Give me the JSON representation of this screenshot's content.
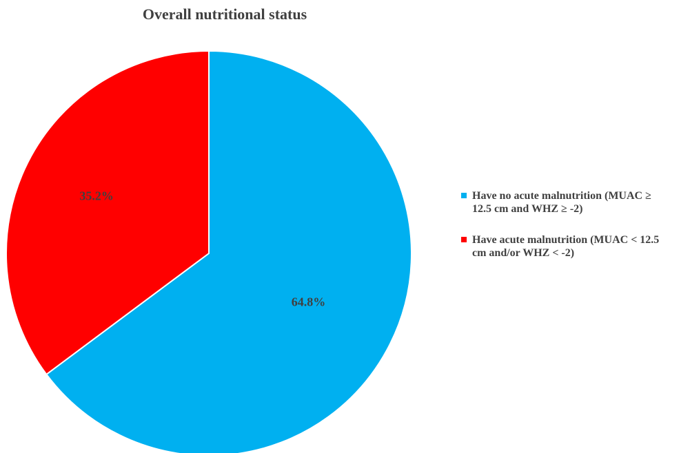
{
  "chart_data": {
    "type": "pie",
    "title": "Overall nutritional status",
    "categories": [
      "Have no acute malnutrition (MUAC ≥ 12.5 cm and WHZ ≥ -2)",
      "Have acute malnutrition (MUAC < 12.5 cm and/or WHZ < -2)"
    ],
    "values": [
      64.8,
      35.2
    ],
    "data_labels": [
      "64.8%",
      "35.2%"
    ],
    "colors": [
      "#00b0f0",
      "#ff0000"
    ],
    "legend": {
      "placement": "right",
      "entries": [
        {
          "label_line1": "Have no acute malnutrition (MUAC ≥",
          "label_line2": "12.5 cm and WHZ ≥ -2)",
          "color": "#00b0f0"
        },
        {
          "label_line1": "Have acute malnutrition (MUAC < 12.5",
          "label_line2": "cm and/or WHZ < -2)",
          "color": "#ff0000"
        }
      ]
    }
  }
}
